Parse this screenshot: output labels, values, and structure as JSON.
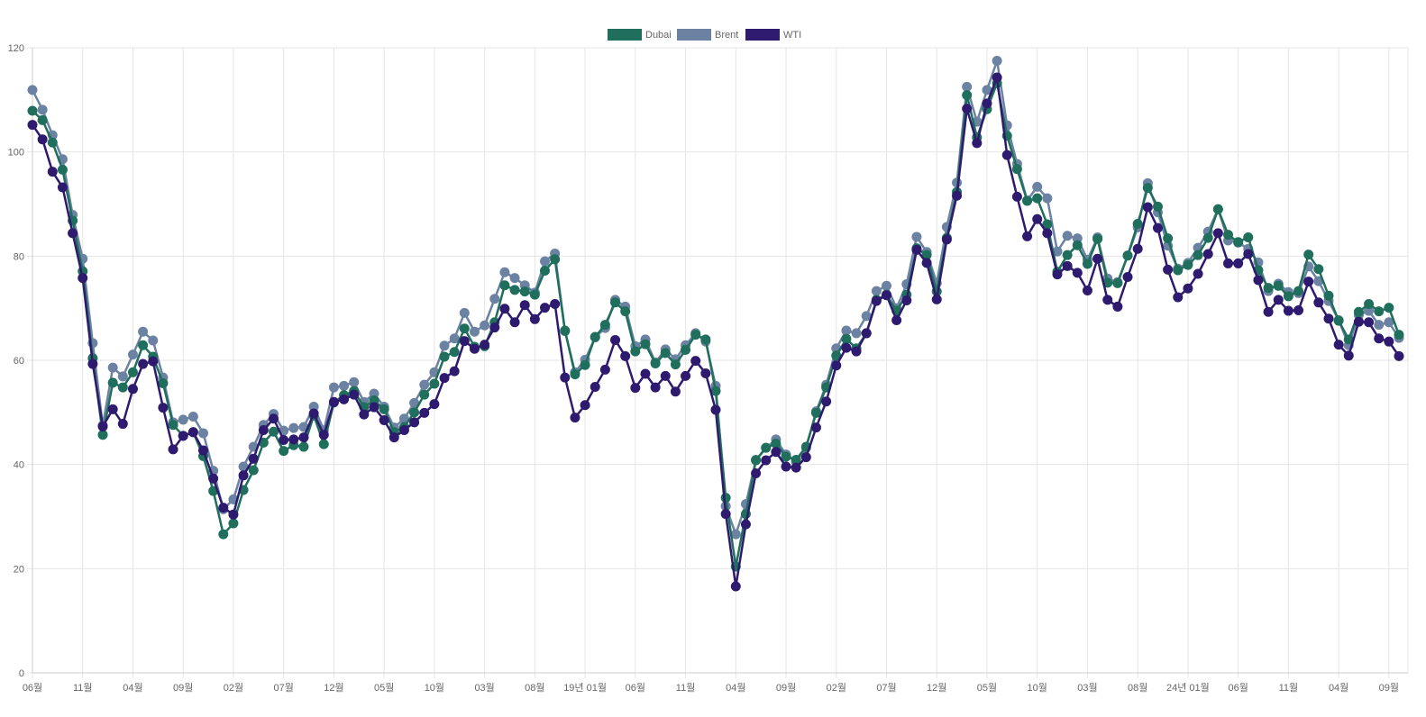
{
  "chart_data": {
    "type": "line",
    "title": "",
    "xlabel": "",
    "ylabel": "",
    "ylim": [
      0,
      120
    ],
    "y_ticks": [
      0,
      20,
      40,
      60,
      80,
      100,
      120
    ],
    "grid": true,
    "legend_position": "top-center",
    "x_tick_labels": [
      "06월",
      "11월",
      "04월",
      "09월",
      "02월",
      "07월",
      "12월",
      "05월",
      "10월",
      "03월",
      "08월",
      "19년 01월",
      "06월",
      "11월",
      "04월",
      "09월",
      "02월",
      "07월",
      "12월",
      "05월",
      "10월",
      "03월",
      "08월",
      "24년 01월",
      "06월",
      "11월",
      "04월",
      "09월"
    ],
    "series": [
      {
        "name": "Dubai",
        "color": "#1f6f5c",
        "values": [
          107.9,
          106.1,
          101.8,
          96.6,
          86.8,
          77.1,
          60.4,
          45.7,
          55.7,
          54.8,
          57.7,
          62.9,
          60.7,
          55.6,
          47.6,
          45.5,
          46.2,
          41.6,
          34.9,
          26.6,
          28.7,
          35.1,
          38.9,
          44.2,
          46.3,
          42.6,
          43.7,
          43.4,
          49.4,
          43.9,
          51.9,
          53.3,
          54.1,
          51.0,
          52.3,
          50.6,
          46.2,
          47.2,
          50.0,
          53.4,
          55.5,
          60.7,
          61.6,
          66.1,
          62.6,
          62.7,
          67.3,
          74.4,
          73.5,
          73.2,
          72.6,
          77.2,
          79.4,
          65.7,
          57.3,
          59.1,
          64.5,
          66.8,
          71.1,
          69.4,
          61.7,
          63.1,
          59.4,
          61.4,
          59.2,
          62.0,
          64.9,
          64.0,
          54.1,
          33.6,
          20.4,
          30.5,
          40.8,
          43.2,
          44.0,
          41.5,
          40.9,
          43.4,
          49.9,
          54.8,
          60.9,
          64.1,
          62.3,
          65.2,
          71.6,
          72.6,
          69.5,
          72.6,
          81.5,
          80.2,
          73.2,
          83.5,
          92.3,
          110.9,
          102.8,
          108.2,
          113.2,
          103.1,
          96.7,
          90.6,
          91.1,
          86.1,
          77.0,
          80.2,
          82.1,
          78.5,
          83.3,
          74.9,
          74.8,
          80.1,
          86.2,
          93.1,
          89.5,
          83.4,
          77.3,
          78.3,
          80.2,
          83.5,
          89.0,
          84.1,
          82.7,
          83.6,
          77.3,
          73.9,
          74.3,
          72.3,
          73.3,
          80.3,
          77.5,
          72.4,
          67.6,
          64.0,
          69.3,
          70.8,
          69.4,
          70.1,
          64.9
        ]
      },
      {
        "name": "Brent",
        "color": "#6b82a3",
        "values": [
          111.9,
          108.1,
          103.2,
          98.6,
          87.9,
          79.5,
          63.3,
          47.5,
          58.6,
          56.9,
          61.1,
          65.5,
          63.8,
          56.7,
          48.1,
          48.6,
          49.2,
          46.0,
          38.8,
          31.4,
          33.3,
          39.6,
          43.4,
          47.6,
          49.7,
          46.5,
          47.0,
          47.2,
          51.1,
          46.6,
          54.8,
          55.1,
          55.8,
          52.0,
          53.6,
          51.1,
          47.1,
          48.8,
          51.8,
          55.3,
          57.7,
          62.8,
          64.2,
          69.1,
          65.5,
          66.7,
          71.8,
          76.9,
          75.8,
          74.4,
          73.0,
          79.0,
          80.5,
          65.6,
          57.7,
          60.1,
          64.4,
          66.2,
          71.6,
          70.3,
          62.7,
          64.0,
          59.6,
          62.1,
          60.2,
          62.9,
          65.2,
          63.6,
          55.1,
          32.0,
          26.6,
          32.4,
          40.9,
          43.2,
          44.8,
          41.9,
          40.5,
          43.2,
          50.2,
          55.3,
          62.3,
          65.7,
          65.2,
          68.5,
          73.3,
          74.3,
          70.0,
          74.6,
          83.7,
          80.8,
          74.8,
          85.6,
          94.1,
          112.5,
          105.8,
          111.9,
          117.5,
          105.1,
          97.7,
          90.7,
          93.3,
          91.1,
          80.9,
          83.9,
          83.4,
          79.3,
          83.6,
          75.7,
          75.0,
          80.1,
          85.5,
          94.0,
          88.4,
          82.0,
          77.6,
          78.7,
          81.6,
          84.7,
          89.0,
          83.0,
          82.6,
          81.4,
          78.8,
          73.3,
          74.7,
          73.1,
          72.9,
          78.0,
          75.2,
          71.4,
          67.7,
          62.9,
          68.7,
          69.5,
          66.8,
          67.3,
          64.3
        ]
      },
      {
        "name": "WTI",
        "color": "#2e1a6e",
        "values": [
          105.2,
          102.4,
          96.2,
          93.2,
          84.4,
          75.8,
          59.3,
          47.3,
          50.6,
          47.8,
          54.5,
          59.3,
          59.8,
          50.9,
          42.9,
          45.5,
          46.2,
          42.7,
          37.3,
          31.7,
          30.4,
          37.9,
          41.1,
          46.6,
          48.8,
          44.7,
          44.8,
          45.2,
          49.8,
          45.7,
          52.0,
          52.5,
          53.4,
          49.6,
          51.0,
          48.5,
          45.2,
          46.6,
          48.1,
          49.9,
          51.6,
          56.6,
          57.9,
          63.7,
          62.2,
          63.0,
          66.3,
          69.9,
          67.3,
          70.6,
          67.9,
          70.1,
          70.8,
          56.7,
          49.0,
          51.4,
          54.9,
          58.2,
          63.9,
          60.8,
          54.7,
          57.4,
          54.8,
          57.0,
          54.0,
          57.0,
          59.9,
          57.5,
          50.5,
          30.5,
          16.6,
          28.5,
          38.3,
          40.8,
          42.4,
          39.6,
          39.4,
          41.4,
          47.1,
          52.1,
          59.0,
          62.4,
          61.7,
          65.2,
          71.4,
          72.5,
          67.7,
          71.5,
          81.2,
          78.7,
          71.7,
          83.2,
          91.6,
          108.3,
          101.7,
          109.3,
          114.3,
          99.4,
          91.4,
          83.8,
          87.1,
          84.4,
          76.5,
          78.1,
          76.8,
          73.4,
          79.5,
          71.6,
          70.3,
          76.0,
          81.4,
          89.4,
          85.4,
          77.4,
          72.1,
          73.8,
          76.6,
          80.4,
          84.4,
          78.6,
          78.6,
          80.4,
          75.4,
          69.3,
          71.6,
          69.5,
          69.6,
          75.1,
          71.1,
          68.0,
          63.0,
          60.9,
          67.4,
          67.3,
          64.2,
          63.6,
          60.8
        ]
      }
    ]
  }
}
